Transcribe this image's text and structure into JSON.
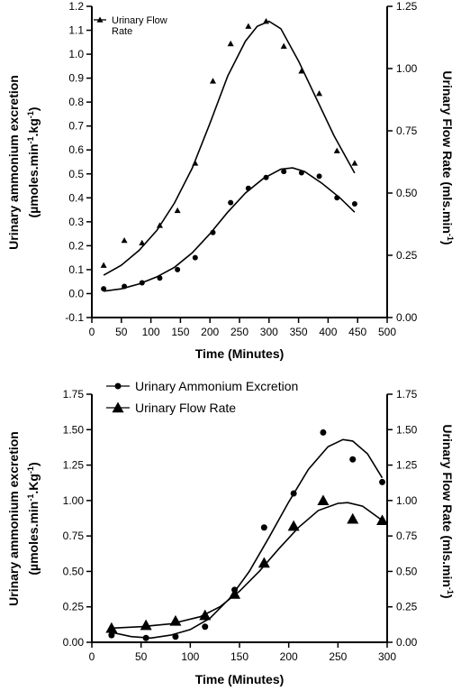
{
  "chart_data": [
    {
      "type": "scatter",
      "xlabel": "Time (Minutes)",
      "ylabel": "Urinary ammonium excretion",
      "ylabel_units": [
        "(µmoles.min",
        "-1",
        ".kg",
        "-1",
        ")"
      ],
      "y2label": "Urinary Flow Rate (mls.min",
      "y2label_sup": "-1",
      "y2label_close": ")",
      "xlim": [
        0,
        500
      ],
      "ylim": [
        -0.1,
        1.2
      ],
      "y2lim": [
        0,
        1.25
      ],
      "x_ticks": [
        "0",
        "50",
        "100",
        "150",
        "200",
        "250",
        "300",
        "350",
        "400",
        "450",
        "500"
      ],
      "y_ticks": [
        "-0.1",
        "0.0",
        "0.1",
        "0.2",
        "0.3",
        "0.4",
        "0.5",
        "0.6",
        "0.7",
        "0.8",
        "0.9",
        "1.0",
        "1.1",
        "1.2"
      ],
      "y2_ticks": [
        "0.00",
        "0.25",
        "0.50",
        "0.75",
        "1.00",
        "1.25"
      ],
      "legend_position": "top-left",
      "series": [
        {
          "name": "",
          "axis": "left",
          "marker": "circle",
          "x": [
            20,
            55,
            85,
            115,
            145,
            175,
            205,
            235,
            265,
            295,
            325,
            355,
            385,
            415,
            445
          ],
          "y": [
            0.02,
            0.03,
            0.045,
            0.065,
            0.1,
            0.15,
            0.255,
            0.38,
            0.44,
            0.485,
            0.51,
            0.505,
            0.49,
            0.4,
            0.375
          ]
        },
        {
          "name": "Urinary Flow Rate",
          "axis": "right",
          "marker": "triangle",
          "x": [
            20,
            55,
            85,
            115,
            145,
            175,
            205,
            235,
            265,
            295,
            325,
            355,
            385,
            415,
            445
          ],
          "y": [
            0.21,
            0.31,
            0.3,
            0.37,
            0.43,
            0.62,
            0.95,
            1.1,
            1.17,
            1.19,
            1.09,
            0.99,
            0.9,
            0.67,
            0.62
          ]
        }
      ],
      "fits": [
        {
          "axis": "left",
          "x": [
            20,
            50,
            80,
            110,
            140,
            170,
            200,
            230,
            260,
            290,
            320,
            340,
            360,
            390,
            420,
            445
          ],
          "y": [
            0.01,
            0.02,
            0.04,
            0.07,
            0.11,
            0.17,
            0.25,
            0.34,
            0.42,
            0.48,
            0.52,
            0.525,
            0.51,
            0.46,
            0.4,
            0.34
          ]
        },
        {
          "axis": "right",
          "x": [
            20,
            50,
            80,
            110,
            140,
            170,
            200,
            230,
            260,
            280,
            300,
            320,
            350,
            380,
            410,
            445
          ],
          "y": [
            0.17,
            0.21,
            0.27,
            0.35,
            0.46,
            0.6,
            0.78,
            0.97,
            1.11,
            1.17,
            1.19,
            1.16,
            1.03,
            0.88,
            0.73,
            0.58
          ]
        }
      ]
    },
    {
      "type": "scatter",
      "xlabel": "Time (Minutes)",
      "ylabel": "Urinary ammonium excretion",
      "ylabel_units": [
        "(µmoles.min",
        "-1",
        ".Kg",
        "-1",
        ")"
      ],
      "y2label": "Urinary Flow Rate (mls.min",
      "y2label_sup": "-1",
      "y2label_close": ")",
      "xlim": [
        0,
        300
      ],
      "ylim": [
        0,
        1.75
      ],
      "y2lim": [
        0,
        1.75
      ],
      "x_ticks": [
        "0",
        "50",
        "100",
        "150",
        "200",
        "250",
        "300"
      ],
      "y_ticks": [
        "0.00",
        "0.25",
        "0.50",
        "0.75",
        "1.00",
        "1.25",
        "1.50",
        "1.75"
      ],
      "y2_ticks": [
        "0.00",
        "0.25",
        "0.50",
        "0.75",
        "1.00",
        "1.25",
        "1.50",
        "1.75"
      ],
      "legend_position": "top-left",
      "series": [
        {
          "name": "Urinary Ammonium Excretion",
          "axis": "left",
          "marker": "circle",
          "x": [
            20,
            55,
            85,
            115,
            145,
            175,
            205,
            235,
            265,
            295
          ],
          "y": [
            0.05,
            0.03,
            0.04,
            0.11,
            0.37,
            0.81,
            1.05,
            1.48,
            1.29,
            1.13
          ]
        },
        {
          "name": "Urinary Flow Rate",
          "axis": "right",
          "marker": "triangle",
          "x": [
            20,
            55,
            85,
            115,
            145,
            175,
            205,
            235,
            265,
            295
          ],
          "y": [
            0.1,
            0.12,
            0.15,
            0.19,
            0.34,
            0.56,
            0.82,
            1.0,
            0.87,
            0.86
          ]
        }
      ],
      "fits": [
        {
          "axis": "left",
          "x": [
            20,
            40,
            60,
            80,
            100,
            120,
            140,
            160,
            180,
            200,
            220,
            240,
            255,
            265,
            280,
            295
          ],
          "y": [
            0.07,
            0.04,
            0.03,
            0.05,
            0.09,
            0.17,
            0.31,
            0.5,
            0.74,
            0.99,
            1.22,
            1.38,
            1.43,
            1.42,
            1.33,
            1.16
          ]
        },
        {
          "axis": "right",
          "x": [
            20,
            50,
            80,
            110,
            130,
            150,
            170,
            190,
            210,
            230,
            250,
            260,
            275,
            295
          ],
          "y": [
            0.1,
            0.11,
            0.13,
            0.18,
            0.25,
            0.36,
            0.5,
            0.66,
            0.81,
            0.93,
            0.98,
            0.985,
            0.96,
            0.86
          ]
        }
      ]
    }
  ]
}
